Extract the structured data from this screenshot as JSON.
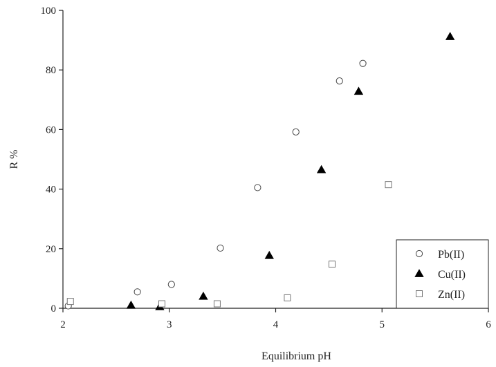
{
  "chart_data": {
    "type": "scatter",
    "title": "",
    "xlabel": "Equilibrium pH",
    "ylabel": "R %",
    "xlim": [
      2,
      6
    ],
    "ylim": [
      0,
      100
    ],
    "xticks": [
      "2",
      "3",
      "4",
      "5",
      "6"
    ],
    "yticks": [
      "0",
      "20",
      "40",
      "60",
      "80",
      "100"
    ],
    "grid": false,
    "legend_position": "bottom-right",
    "series": [
      {
        "name": "Pb(II)",
        "marker": "open-circle",
        "color": "#444444",
        "points": [
          {
            "x": 2.05,
            "y": 0.8
          },
          {
            "x": 2.7,
            "y": 5.5
          },
          {
            "x": 3.02,
            "y": 8.0
          },
          {
            "x": 3.48,
            "y": 20.2
          },
          {
            "x": 3.83,
            "y": 40.5
          },
          {
            "x": 4.19,
            "y": 59.2
          },
          {
            "x": 4.6,
            "y": 76.3
          },
          {
            "x": 4.82,
            "y": 82.2
          }
        ]
      },
      {
        "name": "Cu(II)",
        "marker": "filled-triangle",
        "color": "#000000",
        "points": [
          {
            "x": 2.64,
            "y": 1.0
          },
          {
            "x": 2.91,
            "y": 0.5
          },
          {
            "x": 3.32,
            "y": 4.0
          },
          {
            "x": 3.94,
            "y": 17.7
          },
          {
            "x": 4.43,
            "y": 46.5
          },
          {
            "x": 4.78,
            "y": 72.8
          },
          {
            "x": 5.64,
            "y": 91.2
          }
        ]
      },
      {
        "name": "Zn(II)",
        "marker": "open-square",
        "color": "#777777",
        "points": [
          {
            "x": 2.07,
            "y": 2.3
          },
          {
            "x": 2.93,
            "y": 1.5
          },
          {
            "x": 3.45,
            "y": 1.5
          },
          {
            "x": 4.11,
            "y": 3.5
          },
          {
            "x": 4.53,
            "y": 14.8
          },
          {
            "x": 5.06,
            "y": 41.5
          }
        ]
      }
    ]
  }
}
